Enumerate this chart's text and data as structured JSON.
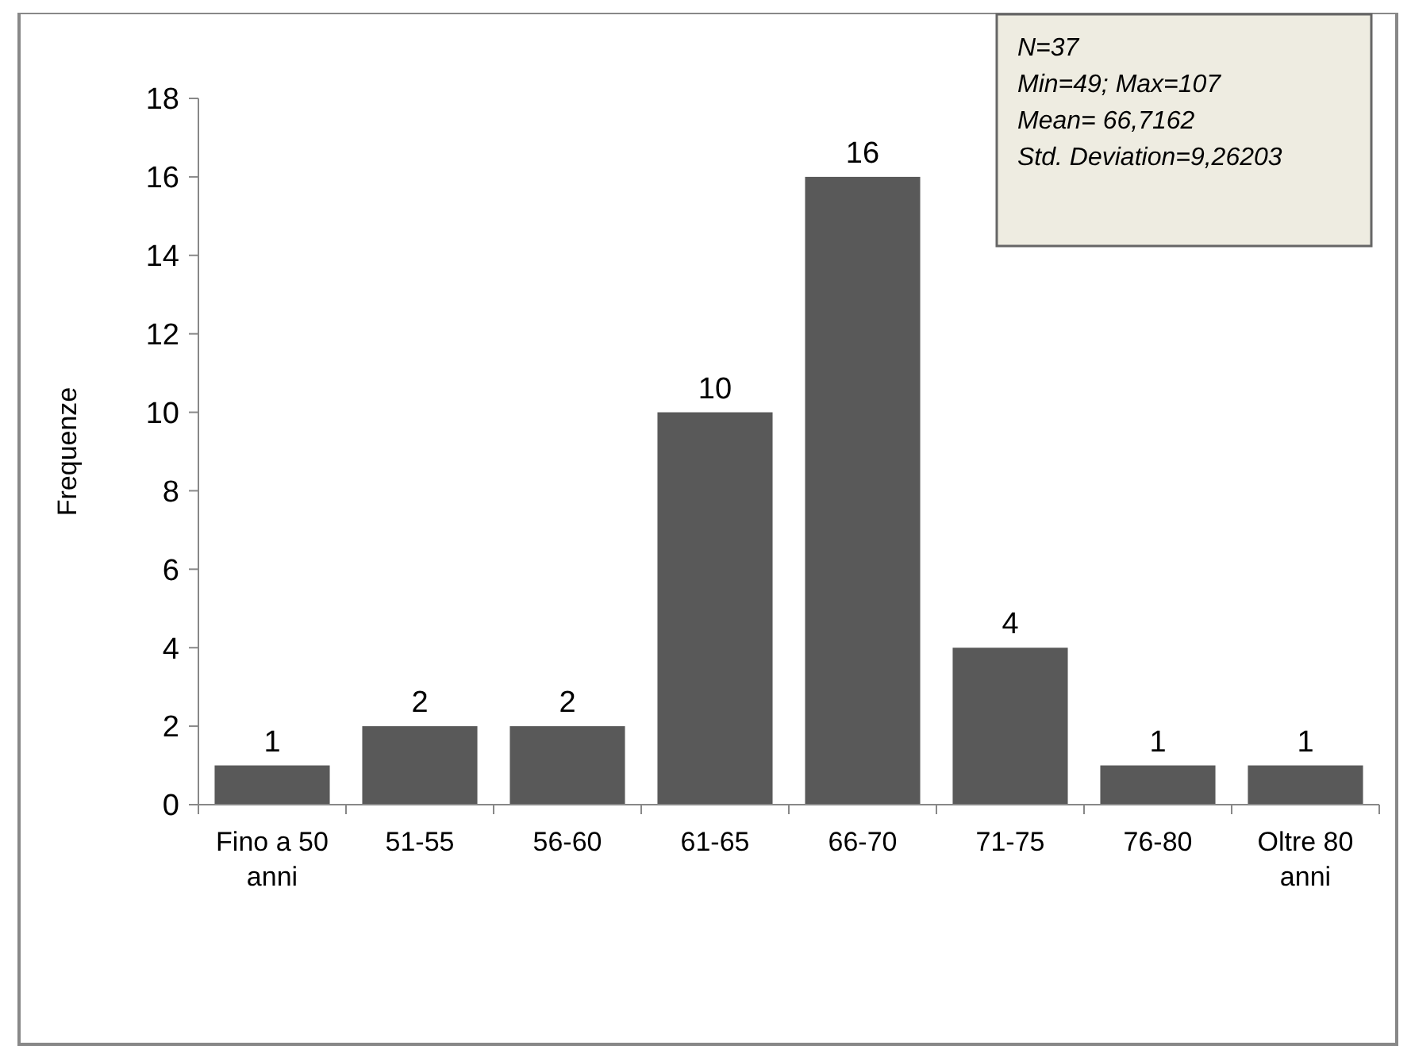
{
  "chart_data": {
    "type": "bar",
    "ylabel": "Frequenze",
    "categories": [
      "Fino a 50 anni",
      "51-55",
      "56-60",
      "61-65",
      "66-70",
      "71-75",
      "76-80",
      "Oltre 80 anni"
    ],
    "values": [
      1,
      2,
      2,
      10,
      16,
      4,
      1,
      1
    ],
    "color": "#595959",
    "ylim": [
      0,
      18
    ],
    "yticks": [
      0,
      2,
      4,
      6,
      8,
      10,
      12,
      14,
      16,
      18
    ],
    "data_labels": true,
    "annotations": [
      "N=37",
      "Min=49; Max=107",
      "Mean= 66,7162",
      "Std. Deviation=9,26203"
    ]
  }
}
